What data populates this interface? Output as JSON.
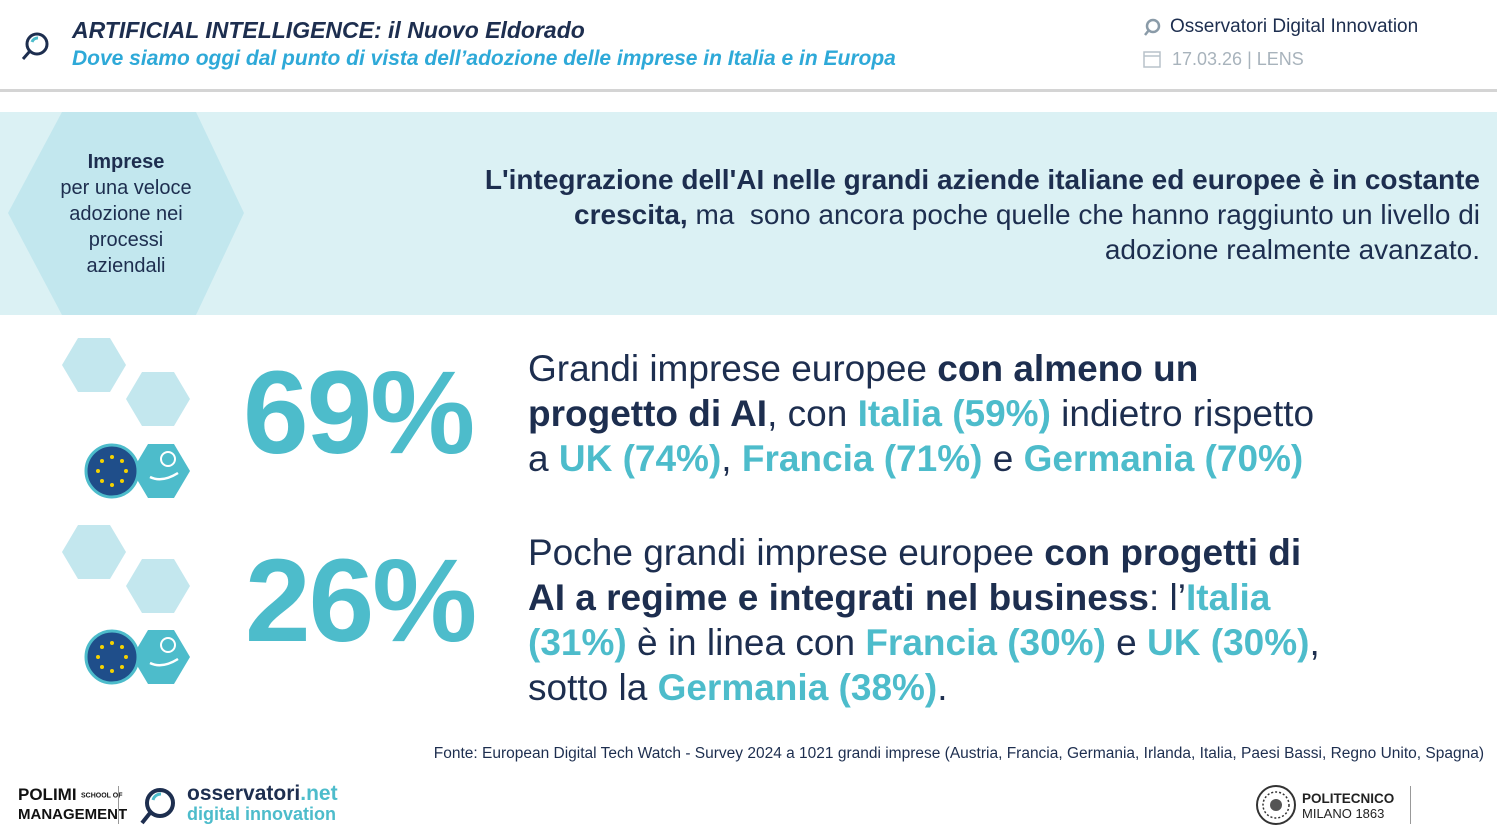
{
  "header": {
    "title": "ARTIFICIAL INTELLIGENCE: il Nuovo Eldorado",
    "subtitle": "Dove siamo oggi dal punto di vista dell’adozione delle imprese in Italia e in Europa",
    "brand": "Osservatori Digital Innovation",
    "date": "17.03.26 | LENS"
  },
  "banner": {
    "label": [
      "Imprese",
      "per una veloce",
      "adozione nei",
      "processi",
      "aziendali"
    ],
    "statement": [
      [
        "L'integrazione dell'AI nelle grandi aziende italiane ed europee è in costante"
      ],
      [
        "crescita,",
        " ma  sono ancora poche quelle che hanno raggiunto un livello di"
      ],
      [
        "adozione realmente avanzato."
      ]
    ]
  },
  "stats": [
    {
      "value": "69%",
      "lines": [
        [
          "Grandi imprese europee ",
          "con almeno un"
        ],
        [
          "progetto di AI",
          ", con ",
          "Italia (59%)",
          " indietro rispetto"
        ],
        [
          "a ",
          "UK (74%)",
          ", ",
          "Francia (71%)",
          " e ",
          "Germania (70%)"
        ]
      ]
    },
    {
      "value": "26%",
      "lines": [
        [
          "Poche grandi imprese europee ",
          "con progetti di"
        ],
        [
          "AI a regime e integrati nel business",
          ": l’",
          "Italia"
        ],
        [
          "(31%)",
          " è in linea con ",
          "Francia (30%)",
          " e ",
          "UK (30%)",
          ","
        ],
        [
          "sotto la ",
          "Germania (38%)",
          "."
        ]
      ]
    }
  ],
  "source": "Fonte: European Digital Tech Watch - Survey 2024 a 1021 grandi imprese (Austria, Francia, Germania, Irlanda, Italia, Paesi Bassi, Regno Unito, Spagna)",
  "footer": {
    "polimi": [
      "POLIMI",
      "SCHOOL OF",
      "MANAGEMENT"
    ],
    "osservatori": [
      "osservatori",
      ".net",
      "digital innovation"
    ],
    "politecnico": [
      "POLITECNICO",
      "MILANO 1863"
    ]
  }
}
